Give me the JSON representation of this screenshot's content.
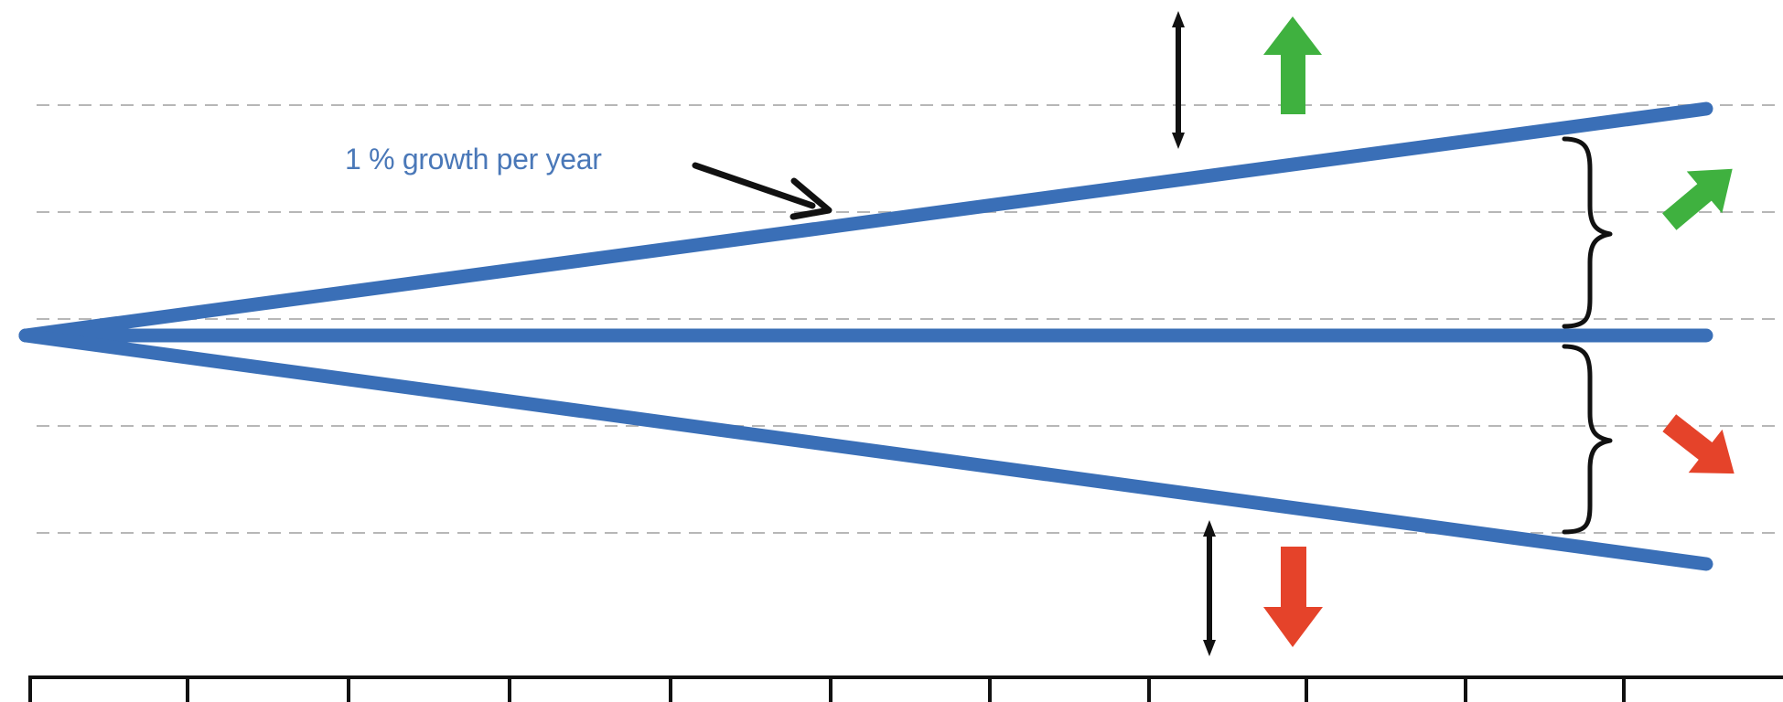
{
  "annotation": {
    "text": "1 % growth per year"
  },
  "colors": {
    "trend_line": "#3a6fb7",
    "gridline": "#b7b7b7",
    "increase_arrow": "#3fb13f",
    "decrease_arrow": "#e5432a",
    "marker": "#111111",
    "annotation_text": "#4a78b8"
  },
  "icons": {
    "up_arrow": "arrow-up-icon",
    "diagonal_up_arrow": "arrow-up-right-icon",
    "diagonal_down_arrow": "arrow-down-right-icon",
    "down_arrow": "arrow-down-icon"
  }
}
